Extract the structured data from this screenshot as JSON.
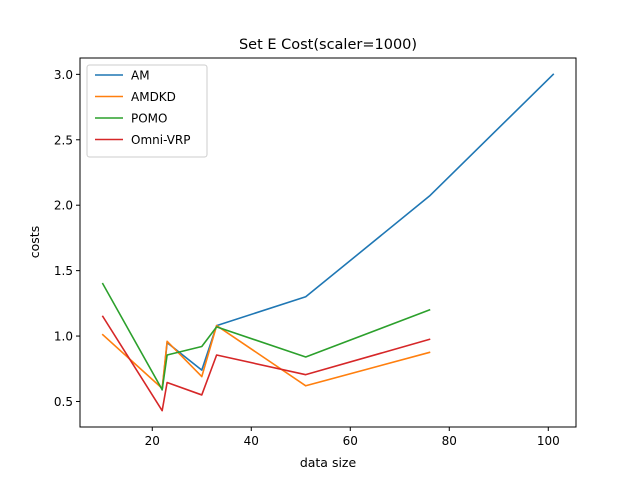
{
  "chart_data": {
    "type": "line",
    "title": "Set E Cost(scaler=1000)",
    "xlabel": "data size",
    "ylabel": "costs",
    "xlim": [
      5.4,
      105.6
    ],
    "ylim": [
      0.305,
      3.125
    ],
    "xticks": [
      20,
      40,
      60,
      80,
      100
    ],
    "xtick_labels": [
      "20",
      "40",
      "60",
      "80",
      "100"
    ],
    "yticks": [
      0.5,
      1.0,
      1.5,
      2.0,
      2.5,
      3.0
    ],
    "ytick_labels": [
      "0.5",
      "1.0",
      "1.5",
      "2.0",
      "2.5",
      "3.0"
    ],
    "grid": false,
    "legend_position": "top-left",
    "series": [
      {
        "name": "AM",
        "color": "#1f77b4",
        "x": [
          22,
          23,
          30,
          33,
          51,
          76,
          101
        ],
        "y": [
          0.59,
          0.95,
          0.74,
          1.08,
          1.3,
          2.07,
          3.0
        ]
      },
      {
        "name": "AMDKD",
        "color": "#ff7f0e",
        "x": [
          10,
          22,
          23,
          30,
          33,
          51,
          76
        ],
        "y": [
          1.01,
          0.6,
          0.96,
          0.69,
          1.08,
          0.62,
          0.875
        ]
      },
      {
        "name": "POMO",
        "color": "#2ca02c",
        "x": [
          10,
          22,
          23,
          30,
          33,
          51,
          76
        ],
        "y": [
          1.4,
          0.59,
          0.855,
          0.92,
          1.07,
          0.84,
          1.2
        ]
      },
      {
        "name": "Omni-VRP",
        "color": "#d62728",
        "x": [
          10,
          22,
          23,
          30,
          33,
          51,
          76
        ],
        "y": [
          1.15,
          0.43,
          0.645,
          0.55,
          0.855,
          0.705,
          0.975
        ]
      }
    ]
  }
}
